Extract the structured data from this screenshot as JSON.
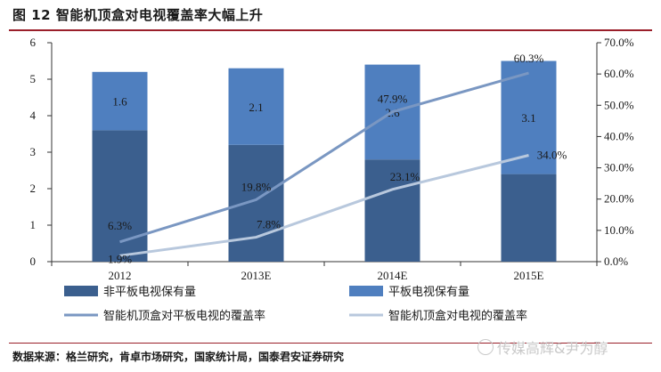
{
  "figure": {
    "title": "图 12 智能机顶盒对电视覆盖率大幅上升",
    "source": "数据来源：格兰研究，肯卓市场研究，国家统计局，国泰君安证券研究",
    "watermark": "传媒高辉&尹为醇"
  },
  "chart_data": {
    "type": "bar",
    "stacked": true,
    "categories": [
      "2012",
      "2013E",
      "2014E",
      "2015E"
    ],
    "series": [
      {
        "name": "非平板电视保有量",
        "axis": "left",
        "kind": "bar",
        "color": "#3b5f8e",
        "values": [
          3.6,
          3.2,
          2.8,
          2.4
        ]
      },
      {
        "name": "平板电视保有量",
        "axis": "left",
        "kind": "bar",
        "color": "#4f7fbf",
        "values": [
          1.6,
          2.1,
          2.6,
          3.1
        ],
        "labels": [
          "1.6",
          "2.1",
          "2.6",
          "3.1"
        ]
      },
      {
        "name": "智能机顶盒对平板电视的覆盖率",
        "axis": "right",
        "kind": "line",
        "color": "#7a97c2",
        "values": [
          6.3,
          19.8,
          47.9,
          60.3
        ],
        "labels": [
          "6.3%",
          "19.8%",
          "47.9%",
          "60.3%"
        ]
      },
      {
        "name": "智能机顶盒对电视的覆盖率",
        "axis": "right",
        "kind": "line",
        "color": "#b8c8dd",
        "values": [
          1.9,
          7.8,
          23.1,
          34.0
        ],
        "labels": [
          "1.9%",
          "7.8%",
          "23.1%",
          "34.0%"
        ]
      }
    ],
    "yleft": {
      "min": 0,
      "max": 6,
      "ticks": [
        "0",
        "1",
        "2",
        "3",
        "4",
        "5",
        "6"
      ]
    },
    "yright": {
      "min": 0,
      "max": 70,
      "ticks": [
        "0.0%",
        "10.0%",
        "20.0%",
        "30.0%",
        "40.0%",
        "50.0%",
        "60.0%",
        "70.0%"
      ]
    },
    "legend_position": "bottom"
  }
}
